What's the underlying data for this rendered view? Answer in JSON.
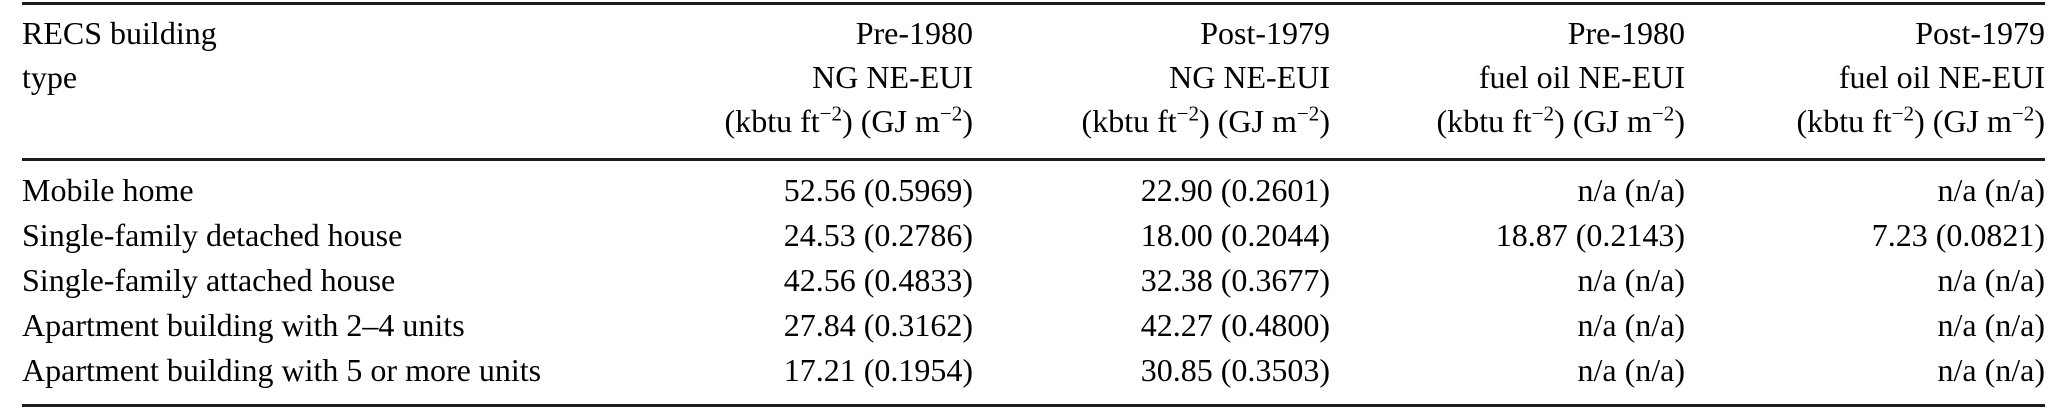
{
  "table": {
    "columns": [
      {
        "id": "building_type",
        "align": "left",
        "header_lines": [
          "RECS building",
          "type",
          ""
        ]
      },
      {
        "id": "pre1980_ng",
        "align": "right",
        "header_lines": [
          "Pre-1980",
          "NG NE-EUI",
          "(kbtu ft^{−2}) (GJ m^{−2})"
        ]
      },
      {
        "id": "post1979_ng",
        "align": "right",
        "header_lines": [
          "Post-1979",
          "NG NE-EUI",
          "(kbtu ft^{−2}) (GJ m^{−2})"
        ]
      },
      {
        "id": "pre1980_fuel_oil",
        "align": "right",
        "header_lines": [
          "Pre-1980",
          "fuel oil NE-EUI",
          "(kbtu ft^{−2}) (GJ m^{−2})"
        ]
      },
      {
        "id": "post1979_fuel_oil",
        "align": "right",
        "header_lines": [
          "Post-1979",
          "fuel oil NE-EUI",
          "(kbtu ft^{−2}) (GJ m^{−2})"
        ]
      }
    ],
    "rows": [
      {
        "building_type": "Mobile home",
        "pre1980_ng": "52.56 (0.5969)",
        "post1979_ng": "22.90 (0.2601)",
        "pre1980_fuel_oil": "n/a (n/a)",
        "post1979_fuel_oil": "n/a (n/a)"
      },
      {
        "building_type": "Single-family detached house",
        "pre1980_ng": "24.53 (0.2786)",
        "post1979_ng": "18.00 (0.2044)",
        "pre1980_fuel_oil": "18.87 (0.2143)",
        "post1979_fuel_oil": "7.23 (0.0821)"
      },
      {
        "building_type": "Single-family attached house",
        "pre1980_ng": "42.56 (0.4833)",
        "post1979_ng": "32.38 (0.3677)",
        "pre1980_fuel_oil": "n/a (n/a)",
        "post1979_fuel_oil": "n/a (n/a)"
      },
      {
        "building_type": "Apartment building with 2–4 units",
        "pre1980_ng": "27.84 (0.3162)",
        "post1979_ng": "42.27 (0.4800)",
        "pre1980_fuel_oil": "n/a (n/a)",
        "post1979_fuel_oil": "n/a (n/a)"
      },
      {
        "building_type": "Apartment building with 5 or more units",
        "pre1980_ng": "17.21 (0.1954)",
        "post1979_ng": "30.85 (0.3503)",
        "pre1980_fuel_oil": "n/a (n/a)",
        "post1979_fuel_oil": "n/a (n/a)"
      }
    ],
    "colors": {
      "text": "#000000",
      "rule": "#1c1c1c",
      "background": "#ffffff"
    }
  }
}
